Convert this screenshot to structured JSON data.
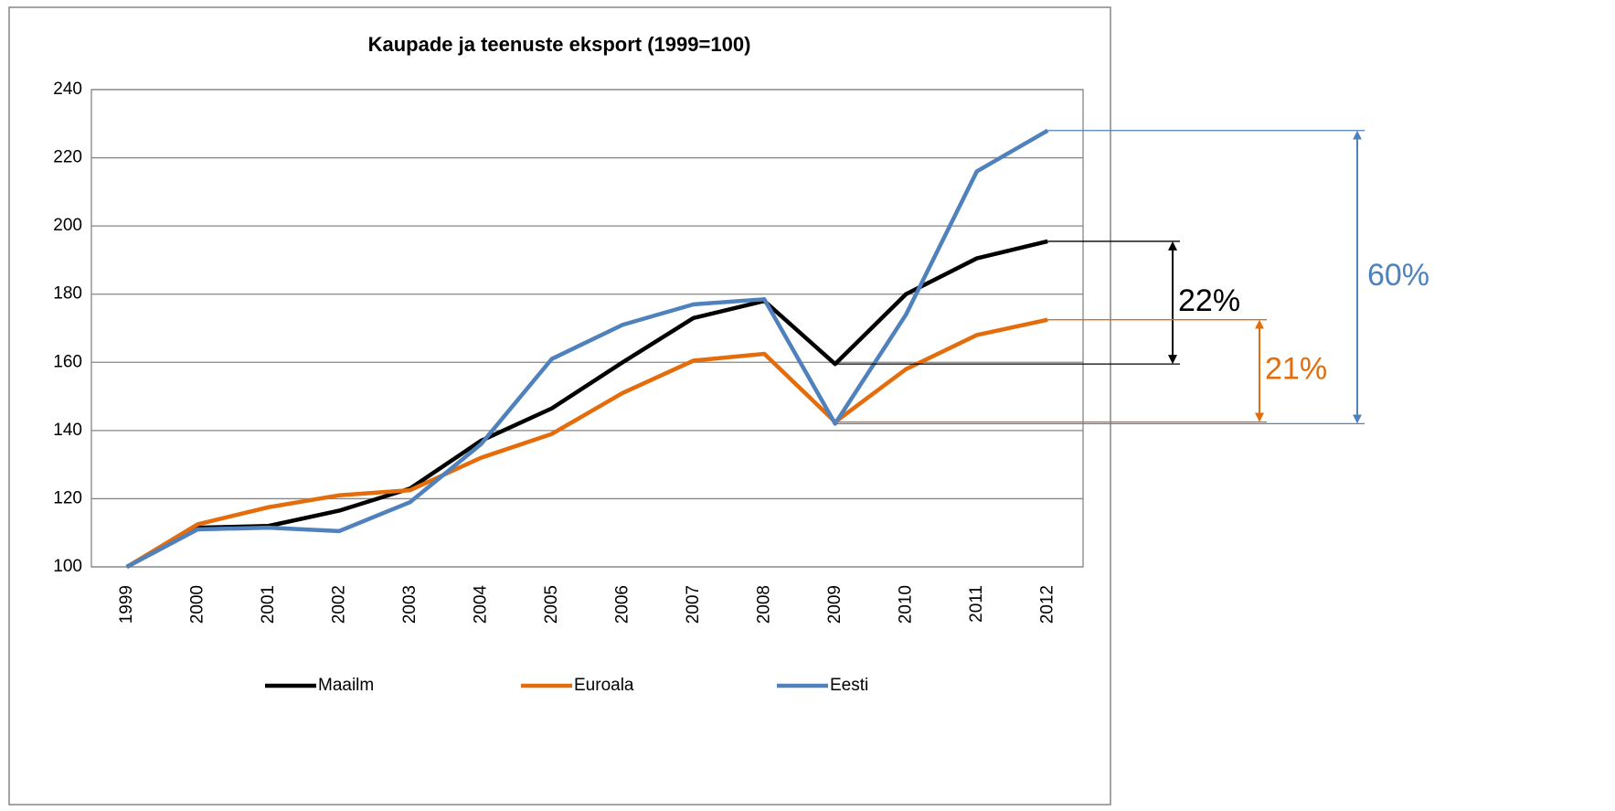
{
  "chart_data": {
    "type": "line",
    "title": "Kaupade ja teenuste eksport (1999=100)",
    "categories": [
      "1999",
      "2000",
      "2001",
      "2002",
      "2003",
      "2004",
      "2005",
      "2006",
      "2007",
      "2008",
      "2009",
      "2010",
      "2011",
      "2012"
    ],
    "series": [
      {
        "name": "Maailm",
        "color": "#000000",
        "values": [
          100,
          111.5,
          112,
          116.5,
          123,
          137,
          146.5,
          160,
          173,
          178,
          159.5,
          180,
          190.5,
          195.5
        ]
      },
      {
        "name": "Euroala",
        "color": "#e46c0a",
        "values": [
          100,
          112.5,
          117.5,
          121,
          122.5,
          132,
          139,
          151,
          160.5,
          162.5,
          142.5,
          158,
          168,
          172.5
        ]
      },
      {
        "name": "Eesti",
        "color": "#4f81bd",
        "values": [
          100,
          111,
          111.5,
          110.5,
          119,
          136,
          161,
          171,
          177,
          178.5,
          142,
          174,
          216,
          228
        ]
      }
    ],
    "annotations": [
      "22%",
      "21%",
      "60%"
    ],
    "ylim": [
      100,
      240
    ],
    "yticks": [
      100,
      120,
      140,
      160,
      180,
      200,
      220,
      240
    ],
    "grid": true,
    "legend": "bottom"
  }
}
